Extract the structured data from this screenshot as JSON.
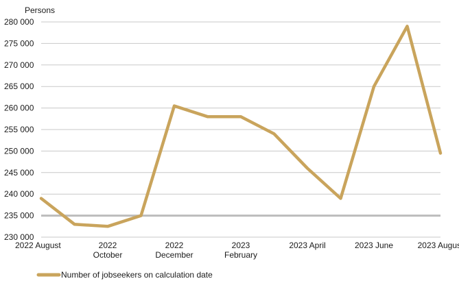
{
  "chart_data": {
    "type": "line",
    "title": "",
    "ylabel": "Persons",
    "xlabel": "",
    "ylim": [
      230000,
      280000
    ],
    "y_ticks": [
      230000,
      235000,
      240000,
      245000,
      250000,
      255000,
      260000,
      265000,
      270000,
      275000,
      280000
    ],
    "y_tick_labels": [
      "230 000",
      "235 000",
      "240 000",
      "245 000",
      "250 000",
      "255 000",
      "260 000",
      "265 000",
      "270 000",
      "275 000",
      "280 000"
    ],
    "x": [
      "2022 August",
      "2022 September",
      "2022 October",
      "2022 November",
      "2022 December",
      "2023 January",
      "2023 February",
      "2023 March",
      "2023 April",
      "2023 May",
      "2023 June",
      "2023 July",
      "2023 August"
    ],
    "x_tick_labels": [
      {
        "index": 0,
        "lines": [
          "2022 August"
        ]
      },
      {
        "index": 2,
        "lines": [
          "2022",
          "October"
        ]
      },
      {
        "index": 4,
        "lines": [
          "2022",
          "December"
        ]
      },
      {
        "index": 6,
        "lines": [
          "2023",
          "February"
        ]
      },
      {
        "index": 8,
        "lines": [
          "2023 April"
        ]
      },
      {
        "index": 10,
        "lines": [
          "2023 June"
        ]
      },
      {
        "index": 12,
        "lines": [
          "2023 August"
        ]
      }
    ],
    "series": [
      {
        "name": "Number of jobseekers on calculation date",
        "color": "#C9A45C",
        "values": [
          239000,
          233000,
          232500,
          235000,
          260500,
          258000,
          258000,
          254000,
          246000,
          239000,
          265000,
          279000,
          249500
        ]
      }
    ],
    "grid": true,
    "grid_color": "#c8c8c8",
    "baseline_color": "#bcbcbc",
    "legend_position": "bottom-left"
  }
}
